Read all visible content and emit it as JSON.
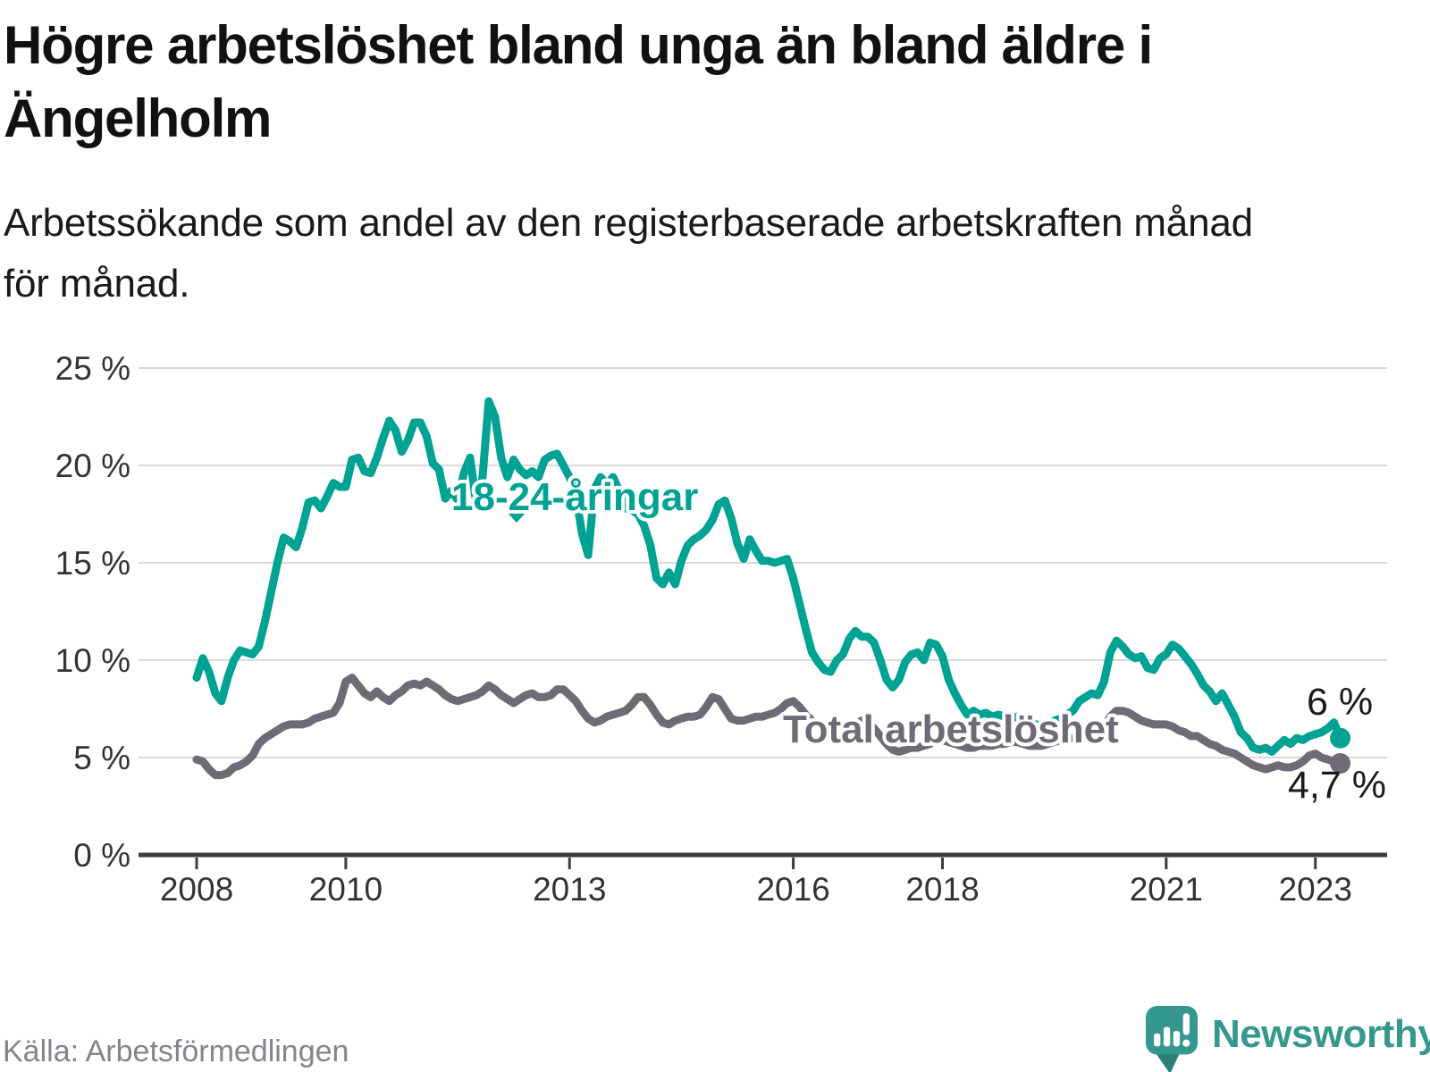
{
  "header": {
    "title_line1": "Högre arbetslöshet bland unga än bland äldre i",
    "title_line2": "Ängelholm",
    "subtitle_line1": "Arbetssökande som andel av den registerbaserade arbetskraften månad",
    "subtitle_line2": "för månad."
  },
  "footer": {
    "source": "Källa: Arbetsförmedlingen",
    "brand": "Newsworthy"
  },
  "colors": {
    "young": "#00a294",
    "total": "#6f6a76",
    "grid": "#d9d9d9",
    "axis": "#3b3b3b",
    "tick_text": "#333333",
    "annotation_text": "#1a1a1a",
    "brand_teal": "#35988f",
    "brand_tail": "#2a8079"
  },
  "chart_data": {
    "type": "line",
    "x_start": "2008-01",
    "x_end": "2023-05",
    "x_tick_labels": [
      "2008",
      "2010",
      "2013",
      "2016",
      "2018",
      "2021",
      "2023"
    ],
    "y_tick_labels": [
      "0 %",
      "5 %",
      "10 %",
      "15 %",
      "20 %",
      "25 %"
    ],
    "ylim": [
      0,
      25
    ],
    "grid": true,
    "legend_position": "inline-labels",
    "series": [
      {
        "name": "18-24-åringar",
        "end_label": "6 %",
        "end_value": 6.0,
        "values": [
          9.1,
          10.1,
          9.4,
          8.3,
          7.9,
          9.1,
          10.0,
          10.5,
          10.4,
          10.3,
          10.7,
          12.0,
          13.5,
          15.0,
          16.3,
          16.1,
          15.8,
          16.8,
          18.1,
          18.2,
          17.8,
          18.4,
          19.1,
          18.9,
          18.9,
          20.3,
          20.4,
          19.7,
          19.6,
          20.4,
          21.4,
          22.3,
          21.8,
          20.7,
          21.3,
          22.2,
          22.2,
          21.5,
          20.1,
          19.8,
          18.3,
          18.7,
          18.2,
          19.6,
          20.4,
          18.0,
          19.4,
          23.3,
          22.5,
          20.4,
          19.4,
          20.3,
          19.8,
          19.5,
          19.7,
          19.4,
          20.3,
          20.5,
          20.6,
          20.0,
          19.4,
          18.5,
          16.5,
          15.4,
          18.8,
          19.4,
          19.0,
          19.4,
          18.7,
          17.8,
          17.7,
          17.5,
          16.9,
          15.9,
          14.2,
          13.9,
          14.5,
          13.9,
          15.1,
          15.9,
          16.2,
          16.4,
          16.7,
          17.2,
          18.0,
          18.2,
          17.3,
          16.0,
          15.2,
          16.2,
          15.6,
          15.1,
          15.1,
          15.0,
          15.1,
          15.2,
          14.2,
          12.9,
          11.6,
          10.4,
          9.9,
          9.5,
          9.4,
          10.0,
          10.3,
          11.1,
          11.5,
          11.2,
          11.2,
          10.9,
          10.0,
          9.0,
          8.6,
          9.0,
          9.9,
          10.3,
          10.4,
          10.0,
          10.9,
          10.8,
          10.2,
          9.0,
          8.3,
          7.7,
          7.2,
          7.4,
          7.2,
          7.3,
          7.1,
          7.2,
          7.1,
          7.0,
          7.1,
          7.0,
          6.9,
          6.7,
          6.6,
          6.7,
          6.9,
          7.0,
          7.2,
          7.4,
          7.9,
          8.1,
          8.3,
          8.2,
          8.9,
          10.4,
          11.0,
          10.7,
          10.3,
          10.1,
          10.2,
          9.6,
          9.5,
          10.1,
          10.3,
          10.8,
          10.6,
          10.2,
          9.8,
          9.3,
          8.7,
          8.4,
          7.9,
          8.3,
          7.7,
          7.1,
          6.3,
          6.0,
          5.5,
          5.4,
          5.5,
          5.3,
          5.6,
          5.9,
          5.7,
          6.0,
          5.9,
          6.1,
          6.2,
          6.3,
          6.5,
          6.8,
          6.0
        ]
      },
      {
        "name": "Total arbetslöshet",
        "end_label": "4,7 %",
        "end_value": 4.7,
        "values": [
          4.9,
          4.8,
          4.4,
          4.1,
          4.1,
          4.2,
          4.5,
          4.6,
          4.8,
          5.1,
          5.7,
          6.0,
          6.2,
          6.4,
          6.6,
          6.7,
          6.7,
          6.7,
          6.8,
          7.0,
          7.1,
          7.2,
          7.3,
          7.8,
          8.9,
          9.1,
          8.7,
          8.3,
          8.1,
          8.4,
          8.1,
          7.9,
          8.2,
          8.4,
          8.7,
          8.8,
          8.7,
          8.9,
          8.7,
          8.5,
          8.2,
          8.0,
          7.9,
          8.0,
          8.1,
          8.2,
          8.4,
          8.7,
          8.5,
          8.2,
          8.0,
          7.8,
          8.0,
          8.2,
          8.3,
          8.1,
          8.1,
          8.2,
          8.5,
          8.5,
          8.2,
          7.9,
          7.4,
          7.0,
          6.8,
          6.9,
          7.1,
          7.2,
          7.3,
          7.4,
          7.7,
          8.1,
          8.1,
          7.7,
          7.2,
          6.8,
          6.7,
          6.9,
          7.0,
          7.1,
          7.1,
          7.2,
          7.6,
          8.1,
          8.0,
          7.5,
          7.0,
          6.9,
          6.9,
          7.0,
          7.1,
          7.1,
          7.2,
          7.3,
          7.5,
          7.8,
          7.9,
          7.6,
          7.2,
          6.9,
          6.7,
          6.7,
          6.7,
          6.7,
          6.6,
          6.6,
          6.7,
          6.9,
          6.8,
          6.5,
          6.1,
          5.7,
          5.4,
          5.3,
          5.4,
          5.5,
          5.5,
          5.6,
          5.7,
          5.9,
          5.9,
          5.8,
          5.7,
          5.6,
          5.5,
          5.5,
          5.6,
          5.6,
          5.6,
          5.7,
          5.7,
          5.8,
          5.8,
          5.7,
          5.6,
          5.6,
          5.6,
          5.7,
          5.8,
          5.9,
          5.9,
          6.0,
          6.1,
          6.2,
          6.2,
          6.3,
          6.6,
          7.1,
          7.4,
          7.4,
          7.3,
          7.1,
          6.9,
          6.8,
          6.7,
          6.7,
          6.7,
          6.6,
          6.4,
          6.3,
          6.1,
          6.1,
          5.9,
          5.7,
          5.6,
          5.4,
          5.3,
          5.2,
          5.0,
          4.8,
          4.6,
          4.5,
          4.4,
          4.5,
          4.6,
          4.5,
          4.5,
          4.6,
          4.8,
          5.1,
          5.2,
          5.0,
          4.9,
          4.8,
          4.7
        ]
      }
    ]
  }
}
